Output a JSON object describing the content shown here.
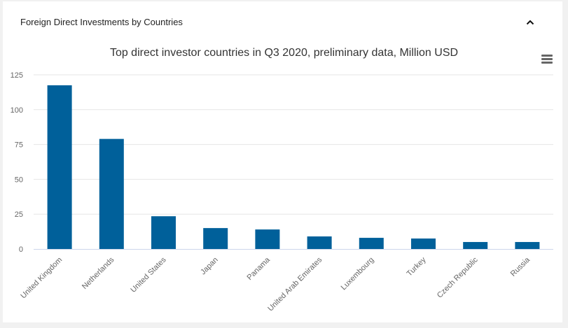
{
  "panel": {
    "title": "Foreign Direct Investments by Countries",
    "collapse_icon": "chevron-up-icon",
    "menu_icon": "hamburger-menu-icon"
  },
  "colors": {
    "bar": "#00609a",
    "grid": "#e6e6e6",
    "axis": "#ccd6eb"
  },
  "chart_data": {
    "type": "bar",
    "title": "Top direct investor countries in Q3 2020, preliminary data, Million USD",
    "xlabel": "",
    "ylabel": "",
    "ylim": [
      0,
      125
    ],
    "yticks": [
      0,
      25,
      50,
      75,
      100,
      125
    ],
    "categories": [
      "United Kingdom",
      "Netherlands",
      "United States",
      "Japan",
      "Panama",
      "United Arab Emirates",
      "Luxembourg",
      "Turkey",
      "Czech Republic",
      "Russia"
    ],
    "values": [
      117.5,
      79,
      23.5,
      15,
      14,
      9,
      8,
      7.5,
      5,
      5
    ],
    "grid": true,
    "legend": "none"
  }
}
